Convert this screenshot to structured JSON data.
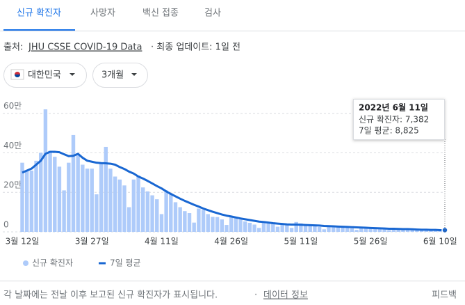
{
  "tabs": [
    "신규 확진자",
    "사망자",
    "백신 접종",
    "검사"
  ],
  "source": {
    "label": "출처:",
    "link": "JHU CSSE COVID-19 Data",
    "updated": "· 최종 업데이트: 1일 전"
  },
  "filters": {
    "region": "대한민국",
    "period": "3개월"
  },
  "chart_data": {
    "type": "bar_line",
    "categories": [
      "3월 12일",
      null,
      null,
      null,
      null,
      null,
      null,
      null,
      null,
      null,
      null,
      null,
      null,
      null,
      null,
      "3월 27일",
      null,
      null,
      null,
      null,
      null,
      null,
      null,
      null,
      null,
      null,
      null,
      null,
      null,
      null,
      "4월 11일",
      null,
      null,
      null,
      null,
      null,
      null,
      null,
      null,
      null,
      null,
      null,
      null,
      null,
      null,
      "4월 26일",
      null,
      null,
      null,
      null,
      null,
      null,
      null,
      null,
      null,
      null,
      null,
      null,
      null,
      null,
      "5월 11일",
      null,
      null,
      null,
      null,
      null,
      null,
      null,
      null,
      null,
      null,
      null,
      null,
      null,
      null,
      "5월 26일",
      null,
      null,
      null,
      null,
      null,
      null,
      null,
      null,
      null,
      null,
      null,
      null,
      null,
      null,
      "6월 10일",
      null
    ],
    "series": [
      {
        "name": "신규 확진자",
        "color": "#aecbfa",
        "kind": "bar",
        "values": [
          350000,
          310000,
          310000,
          360000,
          400000,
          620000,
          410000,
          380000,
          330000,
          210000,
          350000,
          490000,
          395000,
          340000,
          320000,
          320000,
          190000,
          350000,
          430000,
          320000,
          280000,
          265000,
          235000,
          125000,
          265000,
          285000,
          225000,
          205000,
          185000,
          165000,
          90000,
          210000,
          195000,
          150000,
          125000,
          105000,
          95000,
          47000,
          118000,
          111000,
          90000,
          76000,
          75000,
          63000,
          35000,
          81000,
          76000,
          63000,
          53000,
          46000,
          37000,
          20000,
          51000,
          42000,
          42000,
          26000,
          40000,
          40000,
          20000,
          50000,
          43000,
          35000,
          32000,
          30000,
          25000,
          13000,
          30000,
          27000,
          26000,
          24000,
          21000,
          19000,
          10000,
          23000,
          23000,
          20000,
          18000,
          17000,
          15000,
          9000,
          13000,
          14000,
          17000,
          13000,
          12000,
          10000,
          9000,
          6000,
          13000,
          12000,
          12000,
          7382
        ]
      },
      {
        "name": "7일 평균",
        "color": "#1967d2",
        "kind": "line",
        "values": [
          300000,
          310000,
          320000,
          340000,
          360000,
          395000,
          405000,
          405000,
          403000,
          393000,
          383000,
          385000,
          395000,
          375000,
          360000,
          355000,
          350000,
          348000,
          347000,
          345000,
          340000,
          328000,
          318000,
          305000,
          295000,
          280000,
          270000,
          258000,
          245000,
          232000,
          220000,
          205000,
          192000,
          180000,
          168000,
          157000,
          147000,
          137000,
          128000,
          118000,
          110000,
          102000,
          95000,
          88000,
          82000,
          78000,
          73000,
          68000,
          64000,
          60000,
          56000,
          52000,
          50000,
          47000,
          44000,
          42000,
          40000,
          38000,
          37000,
          37000,
          36000,
          35000,
          34000,
          33000,
          32000,
          30000,
          29000,
          28000,
          27000,
          26000,
          25000,
          24000,
          23000,
          22000,
          21000,
          20000,
          19000,
          18000,
          17000,
          16000,
          16000,
          15000,
          14000,
          14000,
          13000,
          12000,
          11000,
          11000,
          10000,
          10000,
          9000,
          8825
        ]
      }
    ],
    "ylim": [
      0,
      680000
    ],
    "yticks": [
      {
        "value": 0,
        "label": "0"
      },
      {
        "value": 200000,
        "label": "20만"
      },
      {
        "value": 400000,
        "label": "40만"
      },
      {
        "value": 600000,
        "label": "60만"
      }
    ],
    "grid": true,
    "tooltip": {
      "date": "2022년 6월 11일",
      "lines": [
        "신규 확진자: 7,382",
        "7일 평균: 8,825"
      ]
    }
  },
  "footer": {
    "note": "각 날짜에는 전날 이후 보고된 신규 확진자가 표시됩니다.",
    "dot": "·",
    "link": "데이터 정보",
    "feedback": "피드백"
  }
}
